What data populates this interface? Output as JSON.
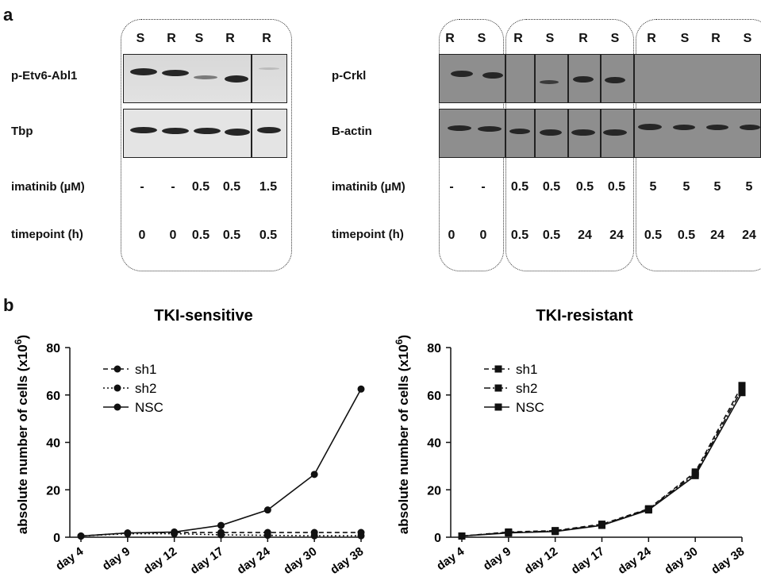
{
  "panel_a": {
    "letter": "a",
    "left": {
      "lanes": [
        "S",
        "R",
        "S",
        "R",
        "R"
      ],
      "row_labels": [
        "p-Etv6-Abl1",
        "Tbp",
        "imatinib (µM)",
        "timepoint (h)"
      ],
      "imatinib": [
        "-",
        "-",
        "0.5",
        "0.5",
        "1.5"
      ],
      "timepoint": [
        "0",
        "0",
        "0.5",
        "0.5",
        "0.5"
      ]
    },
    "right": {
      "lanes": [
        "R",
        "S",
        "R",
        "S",
        "R",
        "S",
        "R",
        "S",
        "R",
        "S"
      ],
      "row_labels": [
        "p-Crkl",
        "B-actin",
        "imatinib (µM)",
        "timepoint (h)"
      ],
      "imatinib": [
        "-",
        "-",
        "0.5",
        "0.5",
        "0.5",
        "0.5",
        "5",
        "5",
        "5",
        "5"
      ],
      "timepoint": [
        "0",
        "0",
        "0.5",
        "0.5",
        "24",
        "24",
        "0.5",
        "0.5",
        "24",
        "24"
      ]
    }
  },
  "panel_b": {
    "letter": "b",
    "ylabel": "absolute number of cells (x10",
    "ylabel_sup": "6",
    "ylabel_close": ")"
  },
  "chart_data": [
    {
      "type": "line",
      "title": "TKI-sensitive",
      "ylabel": "absolute number of cells (x10^6)",
      "xlabel": "",
      "categories": [
        "day 4",
        "day 9",
        "day 12",
        "day 17",
        "day 24",
        "day 30",
        "day 38"
      ],
      "ylim": [
        0,
        80
      ],
      "yticks": [
        0,
        20,
        40,
        60,
        80
      ],
      "legend_position": "top-left",
      "series": [
        {
          "name": "sh1",
          "style": "dashed",
          "marker": "circle",
          "values": [
            0.5,
            1.8,
            2.0,
            2.0,
            2.0,
            2.0,
            2.0
          ]
        },
        {
          "name": "sh2",
          "style": "dotted",
          "marker": "circle",
          "values": [
            0.5,
            1.5,
            1.5,
            1.0,
            0.8,
            0.6,
            0.6
          ]
        },
        {
          "name": "NSC",
          "style": "solid",
          "marker": "circle",
          "values": [
            0.5,
            1.8,
            2.2,
            5.0,
            11.5,
            26.5,
            62.5
          ]
        }
      ]
    },
    {
      "type": "line",
      "title": "TKI-resistant",
      "ylabel": "absolute number of cells (x10^6)",
      "xlabel": "",
      "categories": [
        "day 4",
        "day 9",
        "day 12",
        "day 17",
        "day 24",
        "day 30",
        "day 38"
      ],
      "ylim": [
        0,
        80
      ],
      "yticks": [
        0,
        20,
        40,
        60,
        80
      ],
      "legend_position": "top-left",
      "series": [
        {
          "name": "sh1",
          "style": "dashed",
          "marker": "square",
          "values": [
            0.5,
            2.2,
            2.8,
            5.5,
            12.0,
            27.5,
            64.0
          ]
        },
        {
          "name": "sh2",
          "style": "dashdot",
          "marker": "square",
          "values": [
            0.5,
            2.0,
            2.6,
            5.2,
            11.8,
            26.8,
            62.5
          ]
        },
        {
          "name": "NSC",
          "style": "solid",
          "marker": "square",
          "values": [
            0.5,
            1.8,
            2.4,
            5.0,
            11.5,
            26.0,
            61.0
          ]
        }
      ]
    }
  ]
}
